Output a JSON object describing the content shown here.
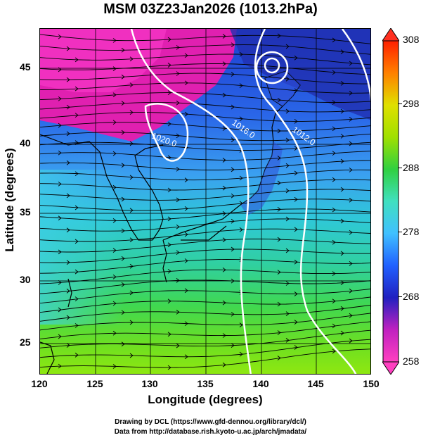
{
  "title": "MSM 03Z23Jan2026 (1013.2hPa)",
  "x_axis": {
    "title": "Longitude (degrees)",
    "range": [
      120,
      150
    ],
    "ticks": [
      "120",
      "125",
      "130",
      "135",
      "140",
      "145",
      "150"
    ]
  },
  "y_axis": {
    "title": "Latitude  (degrees)",
    "range": [
      22.5,
      48
    ],
    "ticks": [
      "25",
      "30",
      "35",
      "40",
      "45"
    ]
  },
  "colorbar": {
    "range": [
      258,
      308
    ],
    "ticks": [
      "258",
      "268",
      "278",
      "288",
      "298",
      "308"
    ],
    "colors": [
      "#ff40c0",
      "#c020c0",
      "#2020c0",
      "#2060ff",
      "#40c0ff",
      "#40e0c0",
      "#30d040",
      "#a0e000",
      "#e0e000",
      "#ff8000",
      "#ff2000"
    ]
  },
  "isobars": [
    {
      "label": "1020.0"
    },
    {
      "label": "1016.0"
    },
    {
      "label": "1012.0"
    }
  ],
  "credits": {
    "line1": "Drawing by DCL (https://www.gfd-dennou.org/library/dcl/)",
    "line2": "Data from http://database.rish.kyoto-u.ac.jp/arch/jmadata/"
  }
}
